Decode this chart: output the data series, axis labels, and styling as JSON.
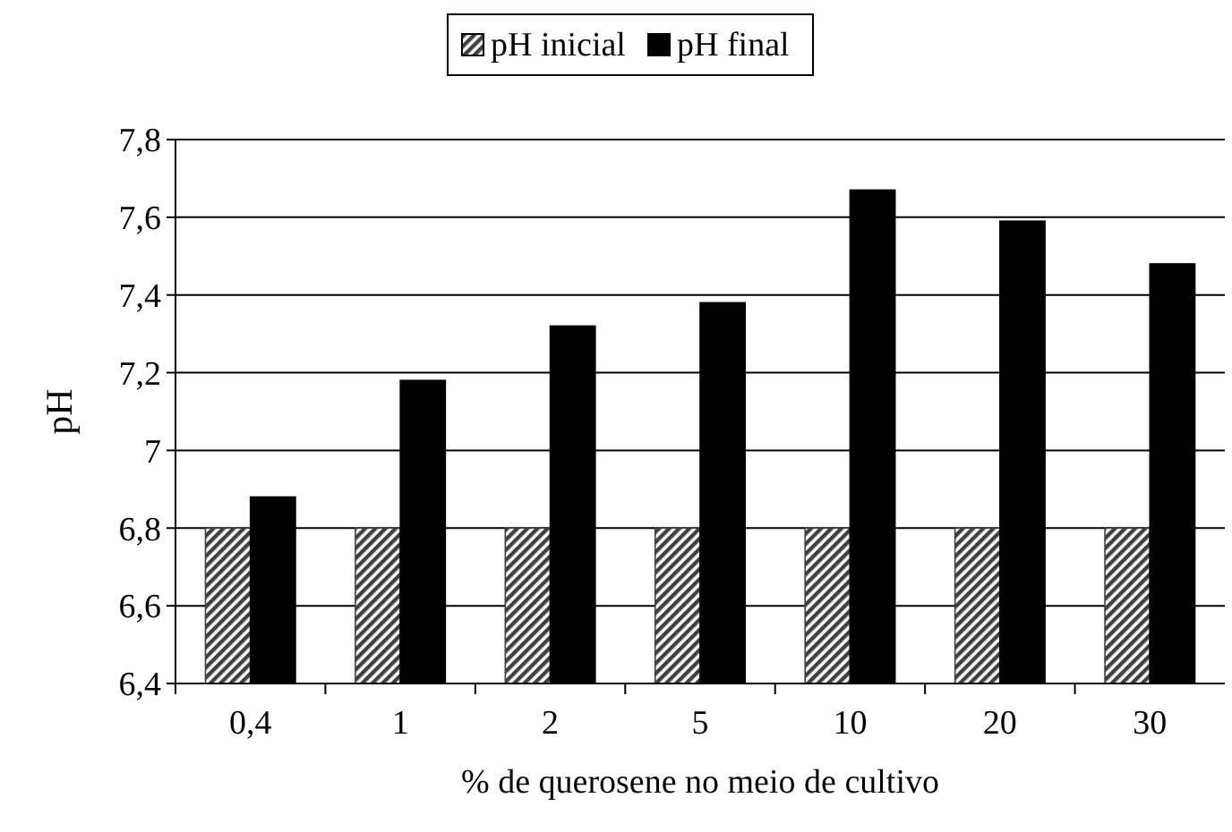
{
  "chart_data": {
    "type": "bar",
    "xlabel": "% de querosene no meio de cultivo",
    "ylabel": "pH",
    "categories": [
      "0,4",
      "1",
      "2",
      "5",
      "10",
      "20",
      "30"
    ],
    "series": [
      {
        "name": "pH inicial",
        "color": "#404040",
        "values": [
          6.8,
          6.8,
          6.8,
          6.8,
          6.8,
          6.8,
          6.8
        ]
      },
      {
        "name": "pH final",
        "color": "#000000",
        "values": [
          6.88,
          7.18,
          7.32,
          7.38,
          7.67,
          7.59,
          7.48
        ]
      }
    ],
    "ylim": [
      6.4,
      7.8
    ],
    "yticks": [
      {
        "value": 6.4,
        "label": "6,4"
      },
      {
        "value": 6.6,
        "label": "6,6"
      },
      {
        "value": 6.8,
        "label": "6,8"
      },
      {
        "value": 7,
        "label": "7"
      },
      {
        "value": 7.2,
        "label": "7,2"
      },
      {
        "value": 7.4,
        "label": "7,4"
      },
      {
        "value": 7.6,
        "label": "7,6"
      },
      {
        "value": 7.8,
        "label": "7,8"
      }
    ],
    "grid": "y",
    "legend": "top"
  }
}
